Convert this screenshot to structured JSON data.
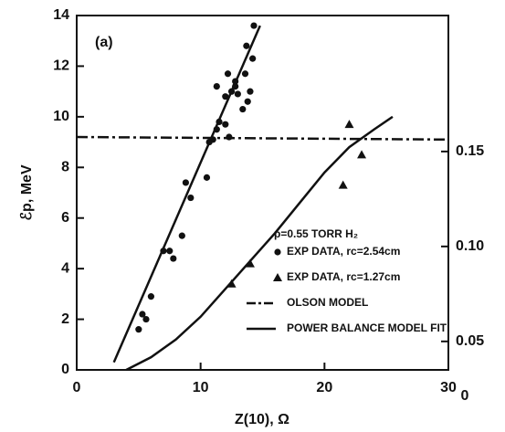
{
  "chart_data": {
    "type": "scatter",
    "panel_label": "(a)",
    "xlabel": "Z(10), Ω",
    "ylabel": "ℰp, MeV",
    "xlim": [
      0,
      30
    ],
    "xticks": [
      0,
      10,
      20,
      30
    ],
    "ylim": [
      0,
      14
    ],
    "yticks": [
      0,
      2,
      4,
      6,
      8,
      10,
      12,
      14
    ],
    "y2lim": [
      0.035,
      0.2216
    ],
    "y2ticks": [
      {
        "value": 0.05,
        "label": "0.05"
      },
      {
        "value": 0.1,
        "label": "0.10"
      },
      {
        "value": 0.15,
        "label": "0.15"
      }
    ],
    "annotations": [
      "0"
    ],
    "legend_header": "p=0.55 TORR H₂",
    "series": [
      {
        "name": "EXP DATA, rc=2.54cm",
        "marker": "circle",
        "color": "#111",
        "x": [
          5,
          5.3,
          5.6,
          6,
          7,
          7.5,
          7.8,
          8.5,
          8.8,
          9.2,
          10.5,
          10.7,
          11,
          11.3,
          11.5,
          11.3,
          12,
          12,
          12.2,
          12.3,
          12.5,
          12.8,
          12.8,
          13,
          13.4,
          13.6,
          13.7,
          13.8,
          14,
          14.2,
          14.3
        ],
        "values": [
          1.6,
          2.2,
          2.0,
          2.9,
          4.7,
          4.7,
          4.4,
          5.3,
          7.4,
          6.8,
          7.6,
          9.0,
          9.1,
          9.5,
          9.8,
          11.2,
          9.7,
          10.8,
          11.7,
          9.2,
          11.0,
          11.4,
          11.2,
          10.9,
          10.3,
          11.7,
          12.8,
          10.6,
          11.0,
          12.3,
          13.6
        ]
      },
      {
        "name": "EXP DATA, rc=1.27cm",
        "marker": "triangle",
        "color": "#111",
        "x": [
          12.5,
          14,
          21.5,
          22,
          23
        ],
        "values": [
          3.4,
          4.2,
          7.3,
          9.7,
          8.5
        ]
      },
      {
        "name": "OLSON MODEL",
        "marker": "dashdot",
        "color": "#111",
        "x": [
          0,
          30
        ],
        "values": [
          9.2,
          9.1
        ]
      },
      {
        "name": "POWER BALANCE MODEL FIT",
        "marker": "line",
        "color": "#111",
        "x": [
          3,
          14.8
        ],
        "values": [
          0.3,
          13.6
        ]
      },
      {
        "marker": "line",
        "color": "#111",
        "x": [
          4,
          6,
          8,
          10,
          12,
          14,
          16,
          18,
          20,
          22,
          24,
          25.5
        ],
        "values": [
          0,
          0.5,
          1.2,
          2.1,
          3.2,
          4.3,
          5.4,
          6.6,
          7.8,
          8.8,
          9.5,
          10.0
        ]
      }
    ]
  }
}
